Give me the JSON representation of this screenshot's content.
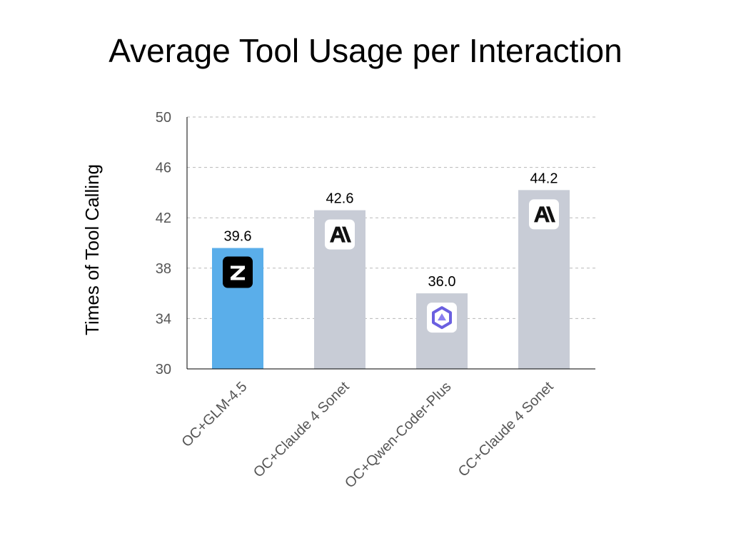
{
  "chart_data": {
    "type": "bar",
    "title": "Average Tool Usage per Interaction",
    "xlabel": "",
    "ylabel": "Times of Tool Calling",
    "categories": [
      "OC+GLM-4.5",
      "OC+Claude 4 Sonet",
      "OC+Qwen-Coder-Plus",
      "CC+Claude 4 Sonet"
    ],
    "values": [
      39.6,
      42.6,
      36.0,
      44.2
    ],
    "value_labels": [
      "39.6",
      "42.6",
      "36.0",
      "44.2"
    ],
    "bar_icons": [
      "zhipu-z-logo-icon",
      "anthropic-logo-icon",
      "qwen-logo-icon",
      "anthropic-logo-icon"
    ],
    "bar_colors": [
      "#5aaeea",
      "#c8ccd6",
      "#c8ccd6",
      "#c8ccd6"
    ],
    "ylim": [
      30,
      50
    ],
    "yticks": [
      "30",
      "34",
      "38",
      "42",
      "46",
      "50"
    ],
    "grid": true,
    "grid_color": "#b8b8b8",
    "axis_color": "#000000",
    "legend": "none"
  }
}
